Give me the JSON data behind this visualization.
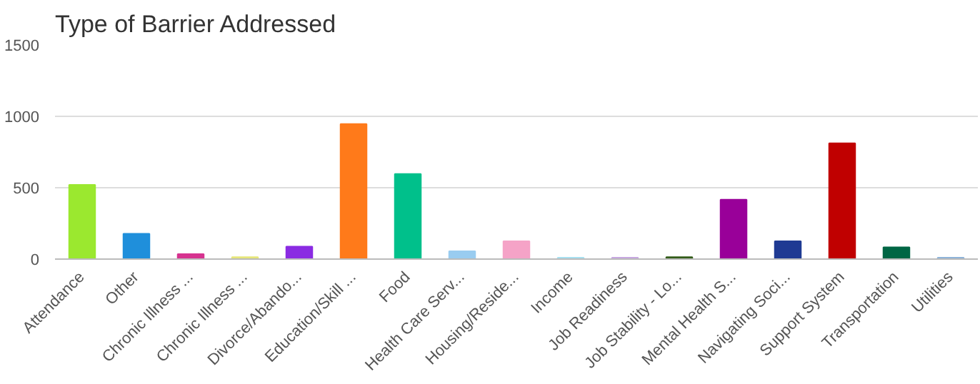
{
  "chart_data": {
    "type": "bar",
    "title": "Type of Barrier Addressed",
    "categories": [
      "Attendance",
      "Other",
      "Chronic Illness ...",
      "Chronic Illness ...",
      "Divorce/Abando...",
      "Education/Skill ...",
      "Food",
      "Health Care Serv...",
      "Housing/Reside...",
      "Income",
      "Job Readiness",
      "Job Stability - Lo...",
      "Mental Health S...",
      "Navigating Soci...",
      "Support System",
      "Transportation",
      "Utilities"
    ],
    "values": [
      520,
      177,
      35,
      14,
      87,
      946,
      596,
      55,
      125,
      10,
      10,
      14,
      416,
      125,
      811,
      83,
      10
    ],
    "colors": [
      "#9be82f",
      "#1f8fdb",
      "#d6338f",
      "#e6e67a",
      "#8a2be2",
      "#ff7a1a",
      "#00c08b",
      "#99ccf0",
      "#f5a3c7",
      "#a8e0f0",
      "#c7a8e0",
      "#335c1a",
      "#990099",
      "#1f3a93",
      "#c00000",
      "#006644",
      "#8fb3d9"
    ],
    "ylim": [
      0,
      1500
    ],
    "yticks": [
      0,
      500,
      1000,
      1500
    ],
    "grid": "y"
  }
}
